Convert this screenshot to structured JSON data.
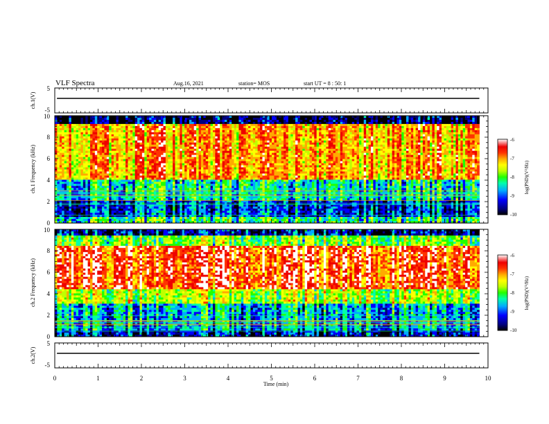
{
  "header": {
    "title": "VLF Spectra",
    "date": "Aug.16, 2021",
    "station": "station= MOS",
    "start": "start UT = 8 : 50: 1"
  },
  "colors": {
    "spectrum": [
      "#000000",
      "#00007f",
      "#0000ff",
      "#00aaff",
      "#00ffaa",
      "#22ff00",
      "#bfff00",
      "#ffff00",
      "#ffaa00",
      "#ff3300",
      "#ee0000",
      "#ffffff"
    ]
  },
  "chart_data": [
    {
      "type": "line",
      "ylabel": "ch.1(V)",
      "ylim": [
        -5,
        5
      ],
      "yticks": [
        "5",
        "-5"
      ],
      "x": [
        0,
        10
      ],
      "values": [
        0,
        0
      ]
    },
    {
      "type": "heatmap",
      "ylabel": "ch.1 Frequency (kHz)",
      "ylim": [
        0,
        10
      ],
      "xlim": [
        0,
        10
      ],
      "yticks": [
        "0",
        "2",
        "4",
        "6",
        "8",
        "10"
      ],
      "colorbar": {
        "label": "log(PSD)(V²/Hz)",
        "ticks": [
          "-6",
          "-7",
          "-8",
          "-9",
          "-10"
        ],
        "range": [
          -10,
          -6
        ]
      },
      "data_end_min": 9.8
    },
    {
      "type": "heatmap",
      "ylabel": "ch.2 Frequency (kHz)",
      "ylim": [
        0,
        10
      ],
      "xlim": [
        0,
        10
      ],
      "yticks": [
        "0",
        "2",
        "4",
        "6",
        "8",
        "10"
      ],
      "colorbar": {
        "label": "log(PSD)(V²/Hz)",
        "ticks": [
          "-6",
          "-7",
          "-8",
          "-9",
          "-10"
        ],
        "range": [
          -10,
          -6
        ]
      },
      "data_end_min": 9.8
    },
    {
      "type": "line",
      "ylabel": "ch.2(V)",
      "ylim": [
        -5,
        5
      ],
      "yticks": [
        "5",
        "-5"
      ],
      "x": [
        0,
        10
      ],
      "values": [
        0,
        0
      ]
    }
  ],
  "xaxis": {
    "title": "Time (min)",
    "ticks": [
      "0",
      "1",
      "2",
      "3",
      "4",
      "5",
      "6",
      "7",
      "8",
      "9",
      "10"
    ]
  }
}
